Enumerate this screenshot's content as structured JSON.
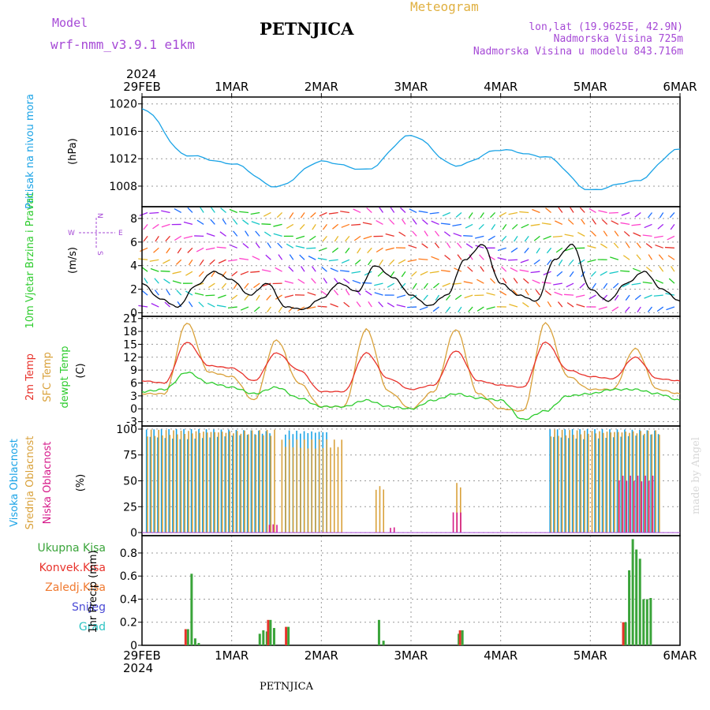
{
  "header": {
    "model_label": "Model",
    "model_name": "wrf-nmm_v3.9.1 e1km",
    "station": "PETNJICA",
    "meteogram": "Meteogram",
    "lonlat": "lon,lat (19.9625E, 42.9N)",
    "altitude": "Nadmorska Visina 725m",
    "model_altitude": "Nadmorska Visina u modelu 843.716m",
    "footer_station": "PETNJICA",
    "watermark": "made by Angel"
  },
  "time_axis": {
    "year_top": "2024",
    "year_bottom": "2024",
    "labels": [
      "29FEB",
      "1MAR",
      "2MAR",
      "3MAR",
      "4MAR",
      "5MAR",
      "6MAR"
    ]
  },
  "wind_legend": {
    "west": "W",
    "east": "E",
    "north": "N",
    "south": "S"
  },
  "colors": {
    "pressure": "#1aa3e6",
    "temp2m": "#e8322b",
    "sfc": "#d9a13a",
    "dewpt": "#2ecc2e",
    "cloud_high": "#1aa3e6",
    "cloud_mid": "#d9a13a",
    "cloud_low": "#d61a8a",
    "precip_total": "#3aa43a",
    "precip_conv": "#e8322b",
    "title_purple": "#a64ad6",
    "meteogram_orange": "#e0b040"
  },
  "chart_data": [
    {
      "type": "line",
      "title": "Pritisak na nivou mora",
      "ylabel": "(hPa)",
      "ylim": [
        1005,
        1021
      ],
      "yticks": [
        "1008",
        "1012",
        "1016",
        "1020"
      ],
      "x_days": [
        0,
        0.5,
        1,
        1.5,
        2,
        2.5,
        3,
        3.5,
        4,
        4.5,
        5,
        5.5,
        6
      ],
      "series": [
        {
          "name": "Pritisak na nivou mora",
          "values": [
            1019.3,
            1012.5,
            1011.3,
            1007.9,
            1011.6,
            1010.4,
            1015.4,
            1011.0,
            1013.3,
            1012.3,
            1007.4,
            1008.7,
            1013.4
          ]
        }
      ]
    },
    {
      "type": "line",
      "title": "10m Vjetar Brzina i Pravac",
      "ylabel": "(m/s)",
      "ylim": [
        -0.3,
        9
      ],
      "yticks": [
        "0",
        "2",
        "4",
        "6",
        "8"
      ],
      "x_days": [
        0,
        0.2,
        0.4,
        0.6,
        0.8,
        1.0,
        1.2,
        1.4,
        1.6,
        1.8,
        2.0,
        2.2,
        2.4,
        2.6,
        2.8,
        3.0,
        3.2,
        3.4,
        3.6,
        3.8,
        4.0,
        4.2,
        4.4,
        4.6,
        4.8,
        5.0,
        5.2,
        5.4,
        5.6,
        5.8,
        6.0
      ],
      "series": [
        {
          "name": "10m Vjetar",
          "values": [
            2.5,
            1.2,
            0.5,
            2.3,
            3.5,
            2.8,
            1.5,
            2.5,
            0.5,
            0.3,
            1.2,
            2.5,
            1.8,
            4.0,
            3.0,
            1.5,
            0.6,
            1.5,
            4.5,
            5.8,
            2.5,
            1.5,
            1.0,
            4.5,
            5.8,
            2.0,
            1.0,
            2.5,
            3.5,
            2.0,
            1.0
          ]
        }
      ]
    },
    {
      "type": "line",
      "title": "Temp",
      "ylabel": "(C)",
      "ylim": [
        -4,
        21.5
      ],
      "yticks": [
        "-3",
        "0",
        "3",
        "6",
        "9",
        "12",
        "15",
        "18",
        "21"
      ],
      "x_days": [
        0,
        0.25,
        0.5,
        0.75,
        1,
        1.25,
        1.5,
        1.75,
        2,
        2.25,
        2.5,
        2.75,
        3,
        3.25,
        3.5,
        3.75,
        4,
        4.25,
        4.5,
        4.75,
        5,
        5.25,
        5.5,
        5.75,
        6
      ],
      "series": [
        {
          "name": "2m Temp",
          "values": [
            6.5,
            6.0,
            15.5,
            10.0,
            9.5,
            6.5,
            13.0,
            9.0,
            4.0,
            4.0,
            13.0,
            7.0,
            4.5,
            5.5,
            13.5,
            6.5,
            5.5,
            5.0,
            15.5,
            9.0,
            7.5,
            7.0,
            12.0,
            7.0,
            6.5
          ]
        },
        {
          "name": "SFC Temp",
          "values": [
            3.5,
            3.5,
            20.0,
            8.5,
            7.5,
            2.0,
            16.0,
            6.0,
            0.5,
            0.5,
            18.5,
            4.0,
            0.0,
            4.0,
            18.5,
            3.5,
            0.0,
            -0.5,
            20.0,
            7.5,
            4.5,
            4.5,
            14.0,
            4.5,
            3.5
          ]
        },
        {
          "name": "dewpt Temp",
          "values": [
            4.0,
            4.5,
            8.5,
            6.0,
            5.0,
            3.5,
            5.0,
            2.5,
            0.5,
            0.5,
            2.0,
            0.5,
            0.0,
            2.0,
            3.5,
            2.5,
            2.0,
            -2.5,
            -0.5,
            3.0,
            3.5,
            4.5,
            4.5,
            3.5,
            2.0
          ]
        }
      ]
    },
    {
      "type": "bar",
      "title": "Oblacnost",
      "ylabel": "(%)",
      "ylim": [
        -3,
        103
      ],
      "yticks": [
        "0",
        "25",
        "50",
        "75",
        "100"
      ],
      "series": [
        {
          "name": "Visoka Oblacnost",
          "segments": [
            [
              0.05,
              1.45,
              100
            ],
            [
              1.6,
              2.1,
              100
            ],
            [
              4.55,
              5.0,
              100
            ],
            [
              5.05,
              5.8,
              100
            ]
          ]
        },
        {
          "name": "Srednja Oblacnost",
          "segments": [
            [
              0.05,
              1.5,
              100
            ],
            [
              1.55,
              2.25,
              90
            ],
            [
              2.6,
              2.7,
              45
            ],
            [
              3.5,
              3.55,
              48
            ],
            [
              4.55,
              5.8,
              100
            ]
          ]
        },
        {
          "name": "Niska Oblacnost",
          "segments": [
            [
              1.4,
              1.5,
              8
            ],
            [
              2.75,
              2.8,
              5
            ],
            [
              3.45,
              3.55,
              20
            ],
            [
              5.3,
              5.7,
              55
            ]
          ]
        }
      ]
    },
    {
      "type": "bar",
      "title": "1hr Precip",
      "ylabel": "1hr Precip (mm)",
      "ylim": [
        0,
        0.95
      ],
      "yticks": [
        "0",
        "0.2",
        "0.4",
        "0.6",
        "0.8"
      ],
      "legend": [
        "Ukupna Kisa",
        "Konvek.Kisa",
        "Zaledj.Kisa",
        "Snijeg",
        "Grad"
      ],
      "bars": [
        {
          "x": 0.5,
          "total": 0.14,
          "conv": 0.14
        },
        {
          "x": 0.54,
          "total": 0.62,
          "conv": 0.0
        },
        {
          "x": 0.58,
          "total": 0.06,
          "conv": 0.0
        },
        {
          "x": 0.62,
          "total": 0.02,
          "conv": 0.0
        },
        {
          "x": 1.3,
          "total": 0.1,
          "conv": 0.0
        },
        {
          "x": 1.34,
          "total": 0.13,
          "conv": 0.0
        },
        {
          "x": 1.38,
          "total": 0.12,
          "conv": 0.0
        },
        {
          "x": 1.42,
          "total": 0.22,
          "conv": 0.22
        },
        {
          "x": 1.46,
          "total": 0.15,
          "conv": 0.0
        },
        {
          "x": 1.62,
          "total": 0.16,
          "conv": 0.16
        },
        {
          "x": 2.63,
          "total": 0.22,
          "conv": 0.0
        },
        {
          "x": 2.68,
          "total": 0.04,
          "conv": 0.0
        },
        {
          "x": 3.52,
          "total": 0.1,
          "conv": 0.0
        },
        {
          "x": 3.56,
          "total": 0.13,
          "conv": 0.13
        },
        {
          "x": 5.38,
          "total": 0.2,
          "conv": 0.2
        },
        {
          "x": 5.42,
          "total": 0.65,
          "conv": 0.0
        },
        {
          "x": 5.46,
          "total": 0.92,
          "conv": 0.0
        },
        {
          "x": 5.5,
          "total": 0.83,
          "conv": 0.0
        },
        {
          "x": 5.54,
          "total": 0.75,
          "conv": 0.0
        },
        {
          "x": 5.58,
          "total": 0.4,
          "conv": 0.0
        },
        {
          "x": 5.62,
          "total": 0.4,
          "conv": 0.0
        },
        {
          "x": 5.66,
          "total": 0.41,
          "conv": 0.0
        }
      ]
    }
  ]
}
